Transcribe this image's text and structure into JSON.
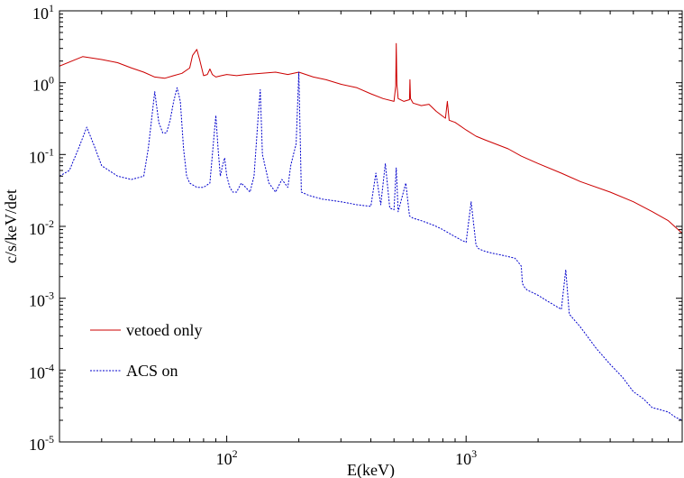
{
  "chart_data": {
    "type": "line",
    "title": "",
    "xlabel": "E(keV)",
    "ylabel": "c/s/keV/det",
    "x_scale": "log",
    "y_scale": "log",
    "xlim": [
      20,
      8000
    ],
    "ylim": [
      1e-05,
      10
    ],
    "grid": false,
    "legend_position": "bottom-left",
    "x_ticks": [
      {
        "value": 100,
        "base": "10",
        "exp": "2"
      },
      {
        "value": 1000,
        "base": "10",
        "exp": "3"
      }
    ],
    "y_ticks": [
      {
        "value": 10,
        "base": "10",
        "exp": "1"
      },
      {
        "value": 1,
        "base": "10",
        "exp": "0"
      },
      {
        "value": 0.1,
        "base": "10",
        "exp": "-1"
      },
      {
        "value": 0.01,
        "base": "10",
        "exp": "-2"
      },
      {
        "value": 0.001,
        "base": "10",
        "exp": "-3"
      },
      {
        "value": 0.0001,
        "base": "10",
        "exp": "-4"
      },
      {
        "value": 1e-05,
        "base": "10",
        "exp": "-5"
      }
    ],
    "series": [
      {
        "name": "vetoed only",
        "color": "#cc0000",
        "dash": "solid",
        "x": [
          20,
          25,
          30,
          35,
          40,
          45,
          50,
          55,
          60,
          65,
          70,
          72,
          75,
          77,
          80,
          83,
          85,
          87,
          90,
          95,
          100,
          110,
          120,
          140,
          160,
          180,
          200,
          230,
          260,
          300,
          350,
          400,
          450,
          500,
          508,
          511,
          514,
          520,
          550,
          580,
          583,
          586,
          600,
          650,
          700,
          750,
          800,
          820,
          835,
          850,
          900,
          1000,
          1100,
          1200,
          1500,
          1700,
          2000,
          2500,
          3000,
          4000,
          5000,
          6000,
          7000,
          8000
        ],
        "y": [
          1.7,
          2.3,
          2.1,
          1.9,
          1.6,
          1.4,
          1.2,
          1.15,
          1.25,
          1.35,
          1.6,
          2.4,
          2.9,
          2.1,
          1.25,
          1.3,
          1.55,
          1.3,
          1.2,
          1.25,
          1.3,
          1.25,
          1.3,
          1.35,
          1.4,
          1.3,
          1.4,
          1.2,
          1.1,
          0.95,
          0.85,
          0.7,
          0.6,
          0.55,
          0.9,
          3.5,
          0.95,
          0.6,
          0.55,
          0.58,
          1.1,
          0.6,
          0.52,
          0.48,
          0.5,
          0.4,
          0.34,
          0.32,
          0.55,
          0.3,
          0.28,
          0.22,
          0.18,
          0.16,
          0.12,
          0.095,
          0.075,
          0.055,
          0.042,
          0.03,
          0.022,
          0.016,
          0.012,
          0.008
        ]
      },
      {
        "name": "ACS on",
        "color": "#0000cc",
        "dash": "dotted",
        "x": [
          20,
          22,
          24,
          26,
          28,
          30,
          35,
          40,
          45,
          47,
          50,
          52,
          54,
          56,
          58,
          60,
          62,
          64,
          66,
          68,
          70,
          75,
          80,
          85,
          88,
          90,
          92,
          94,
          96,
          98,
          100,
          103,
          106,
          110,
          115,
          120,
          125,
          130,
          135,
          138,
          141,
          150,
          160,
          170,
          180,
          185,
          190,
          195,
          200,
          205,
          220,
          250,
          300,
          350,
          400,
          420,
          440,
          460,
          480,
          500,
          511,
          520,
          560,
          580,
          600,
          650,
          700,
          750,
          800,
          850,
          900,
          950,
          1000,
          1050,
          1100,
          1120,
          1140,
          1200,
          1300,
          1400,
          1500,
          1600,
          1650,
          1700,
          1720,
          1760,
          1800,
          2000,
          2200,
          2500,
          2610,
          2700,
          3000,
          3500,
          4000,
          4500,
          5000,
          5500,
          6000,
          6500,
          7000,
          7500,
          8000
        ],
        "y": [
          0.05,
          0.06,
          0.12,
          0.24,
          0.13,
          0.07,
          0.05,
          0.045,
          0.05,
          0.12,
          0.75,
          0.28,
          0.2,
          0.2,
          0.3,
          0.55,
          0.85,
          0.55,
          0.12,
          0.05,
          0.04,
          0.035,
          0.035,
          0.04,
          0.15,
          0.35,
          0.12,
          0.05,
          0.07,
          0.09,
          0.05,
          0.035,
          0.03,
          0.03,
          0.04,
          0.035,
          0.03,
          0.05,
          0.3,
          0.8,
          0.1,
          0.04,
          0.03,
          0.045,
          0.035,
          0.07,
          0.1,
          0.14,
          1.4,
          0.03,
          0.027,
          0.024,
          0.022,
          0.02,
          0.019,
          0.055,
          0.02,
          0.075,
          0.018,
          0.017,
          0.065,
          0.016,
          0.04,
          0.014,
          0.013,
          0.012,
          0.011,
          0.01,
          0.009,
          0.008,
          0.0072,
          0.0065,
          0.006,
          0.022,
          0.0055,
          0.005,
          0.0048,
          0.0045,
          0.0042,
          0.004,
          0.0038,
          0.0036,
          0.0032,
          0.0028,
          0.0016,
          0.0014,
          0.0013,
          0.0011,
          0.0009,
          0.0007,
          0.0025,
          0.0006,
          0.0004,
          0.0002,
          0.00012,
          8e-05,
          5e-05,
          4e-05,
          3e-05,
          2.8e-05,
          2.6e-05,
          2.2e-05,
          2e-05
        ]
      }
    ]
  }
}
